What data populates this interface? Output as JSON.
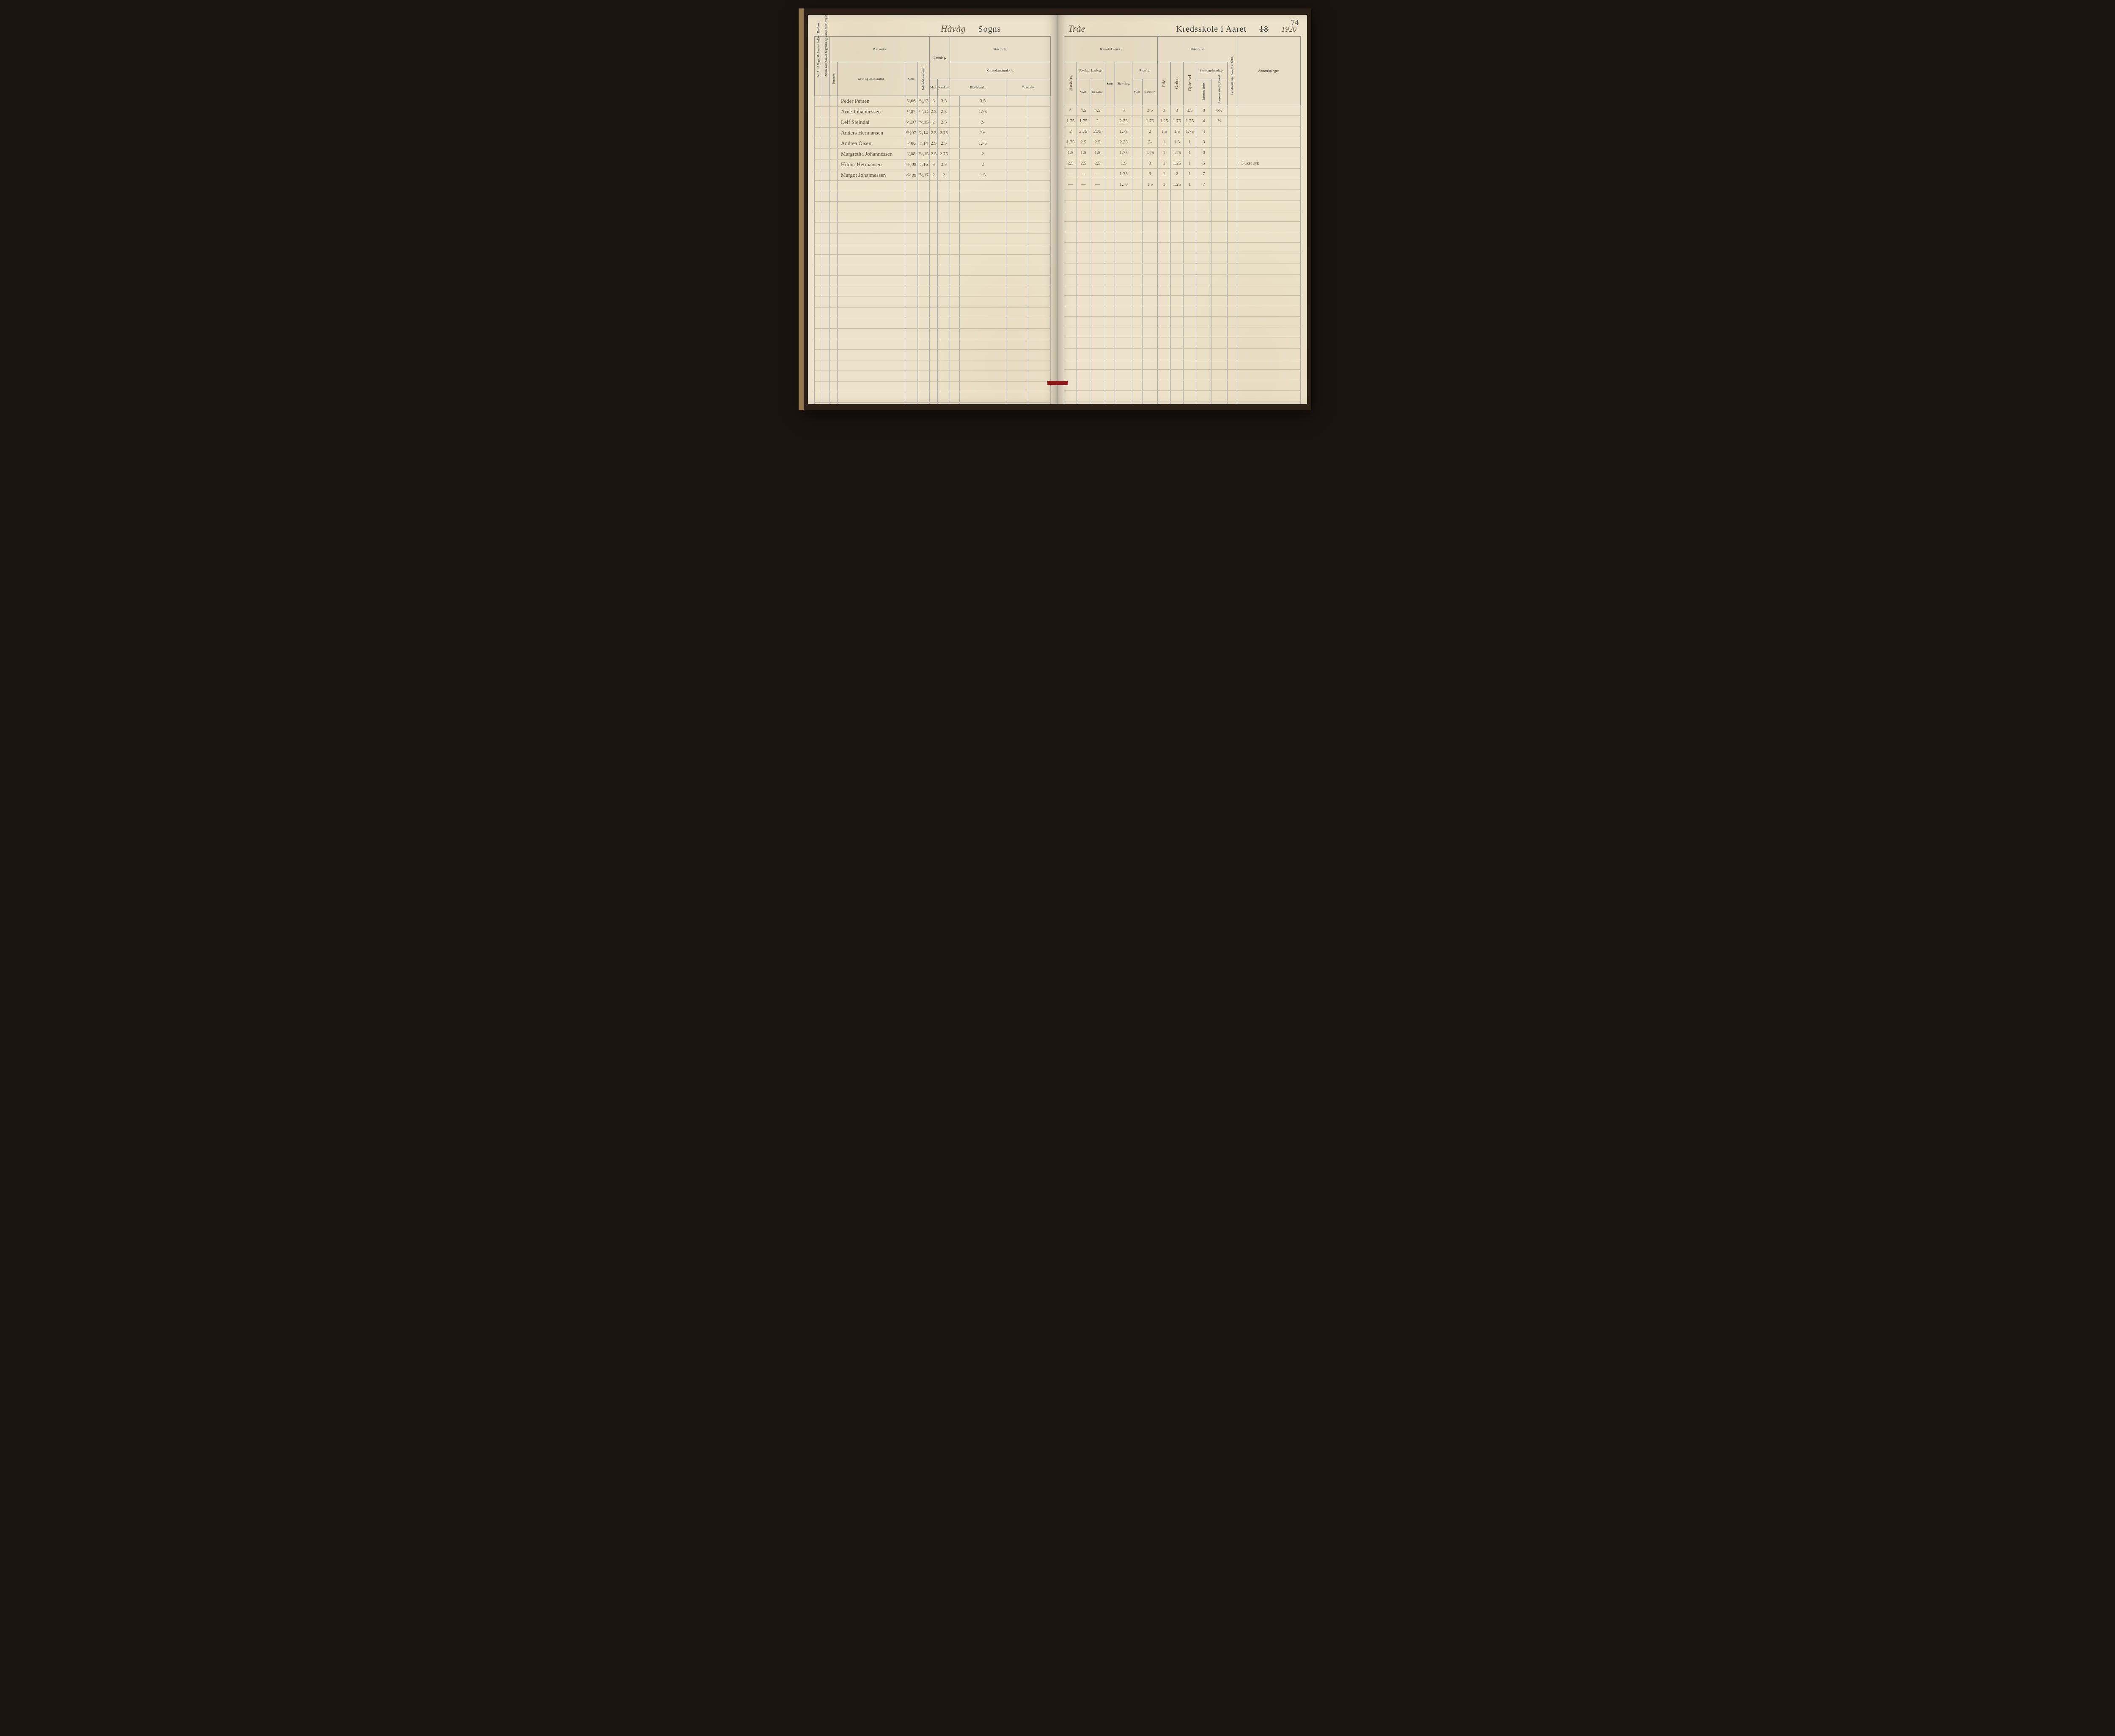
{
  "page_number": "74",
  "header": {
    "left_parish": "Håvåg",
    "sogns": "Sogns",
    "right_school": "Tråe",
    "kredsskole": "Kredsskole i Aaret",
    "year_prefix_print": "18",
    "year_suffix_hand": "1920"
  },
  "groups": {
    "barnets_left": "Barnets",
    "barnets_mid": "Barnets",
    "kundskaber": "Kundskaber.",
    "barnets_right": "Barnets"
  },
  "columns": {
    "antal_dage": "Det Antal Dage, Skolen skal holdes i Kredsen.",
    "datum": "Datum, naar Skolen begynder og slutter hver Omgang.",
    "nummer": "Nummer.",
    "navn": "Navn og Opholdssted.",
    "alder": "Alder.",
    "indtrae": "Indtrædelses-datum",
    "laesning": "Læsning.",
    "kristendom": "Kristendomskundskab.",
    "bibelhistorie": "Bibelhistorie.",
    "troeslaere": "Troeslære.",
    "maal": "Maal.",
    "karakter": "Karakter.",
    "historie": "Historie",
    "udvalg": "Udvalg af Læsbogen",
    "sang": "Sang.",
    "skrivning": "Skrivning.",
    "regning": "Regning.",
    "skolesog": "Skolesøgningsdage.",
    "forsomte_hele": "forsømte Hele",
    "forsomte_lovlig": "forsømte ulovlig Grund.",
    "antal_dage_holdt": "Det Antal Dage, Skolen er holdt.",
    "anmaerk": "Anmærkninger.",
    "flid": "Flid",
    "orden": "Orden",
    "opfor": "Opførsel"
  },
  "rows": [
    {
      "navn": "Peder Persen",
      "alder": "⁷⁄₅06",
      "indtrae": "²²⁄₄13",
      "c1": "3",
      "c2": "3.5",
      "c3": "3.5",
      "r1": "4",
      "r2": "4.5",
      "r3": "4.5",
      "r4": "3",
      "r5": "3.5",
      "r6": "3",
      "r7": "3",
      "r8": "3.5",
      "r9": "8",
      "r10": "6½",
      "remark": ""
    },
    {
      "navn": "Arne Johannessen",
      "alder": "¹⁄₄07",
      "indtrae": "¹⁴⁄₄14",
      "c1": "2.5",
      "c2": "2.5",
      "c3": "1.75",
      "r1": "1.75",
      "r2": "1.75",
      "r3": "2",
      "r4": "2.25",
      "r5": "1.75",
      "r6": "1.25",
      "r7": "1.75",
      "r8": "1.25",
      "r9": "4",
      "r10": "½",
      "remark": ""
    },
    {
      "navn": "Leif Steindal",
      "alder": "¹⁄₁₀07",
      "indtrae": "²⁴⁄₄15",
      "c1": "2",
      "c2": "2.5",
      "c3": "2-",
      "r1": "2",
      "r2": "2.75",
      "r3": "2.75",
      "r4": "1.75",
      "r5": "2",
      "r6": "1.5",
      "r7": "1.5",
      "r8": "1.75",
      "r9": "4",
      "r10": "",
      "remark": ""
    },
    {
      "navn": "Anders Hermansen",
      "alder": "²³⁄₂07",
      "indtrae": "⁷⁄₄14",
      "c1": "2.5",
      "c2": "2.75",
      "c3": "2+",
      "r1": "1.75",
      "r2": "2.5",
      "r3": "2.5",
      "r4": "2.25",
      "r5": "2-",
      "r6": "1",
      "r7": "1.5",
      "r8": "1",
      "r9": "3",
      "r10": "",
      "remark": ""
    },
    {
      "navn": "Andrea Olsen",
      "alder": "⁷⁄₁06",
      "indtrae": "⁷⁄₄14",
      "c1": "2.5",
      "c2": "2.5",
      "c3": "1.75",
      "r1": "1.5",
      "r2": "1.5",
      "r3": "1.5",
      "r4": "1.75",
      "r5": "1.25",
      "r6": "1",
      "r7": "1.25",
      "r8": "1",
      "r9": "0",
      "r10": "",
      "remark": ""
    },
    {
      "navn": "Margretha Johannessen",
      "alder": "³⁄₄08",
      "indtrae": "²⁸⁄₅15",
      "c1": "2.5",
      "c2": "2.75",
      "c3": "2",
      "r1": "2.5",
      "r2": "2.5",
      "r3": "2.5",
      "r4": "1.5",
      "r5": "3",
      "r6": "1",
      "r7": "1.25",
      "r8": "1",
      "r9": "5",
      "r10": "",
      "remark": "+ 3 uker syk"
    },
    {
      "navn": "Hildur Hermansen",
      "alder": "¹⁴⁄₁09",
      "indtrae": "⁷⁄₄16",
      "c1": "3",
      "c2": "3.5",
      "c3": "2",
      "r1": "—",
      "r2": "—",
      "r3": "—",
      "r4": "1.75",
      "r5": "3",
      "r6": "1",
      "r7": "2",
      "r8": "1",
      "r9": "7",
      "r10": "",
      "remark": ""
    },
    {
      "navn": "Margot Johannessen",
      "alder": "²⁰⁄₁09",
      "indtrae": "²⁷⁄₄17",
      "c1": "2",
      "c2": "2",
      "c3": "1.5",
      "r1": "—",
      "r2": "—",
      "r3": "—",
      "r4": "1.75",
      "r5": "1.5",
      "r6": "1",
      "r7": "1.25",
      "r8": "1",
      "r9": "7",
      "r10": "",
      "remark": ""
    }
  ],
  "empty_row_count": 22,
  "styling": {
    "paper_bg": "#ede3cc",
    "ink_color": "#5a4a3a",
    "rule_color": "#888",
    "faint_rule": "#c8bda5",
    "ribbon_color": "#8b1a1a"
  }
}
